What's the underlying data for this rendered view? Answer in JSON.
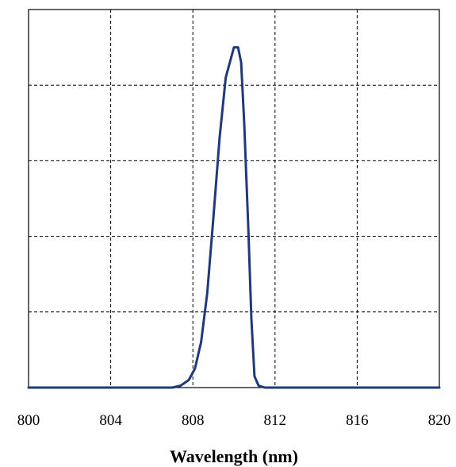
{
  "chart_data": {
    "type": "line",
    "title": "",
    "xlabel": "Wavelength (nm)",
    "ylabel": "",
    "xlim": [
      800,
      820
    ],
    "ylim": [
      0,
      1
    ],
    "x_ticks": [
      "800",
      "804",
      "808",
      "812",
      "816",
      "820"
    ],
    "x_tick_values": [
      800,
      804,
      808,
      812,
      816,
      820
    ],
    "y_grid_values": [
      0.2,
      0.4,
      0.6,
      0.8
    ],
    "grid": true,
    "grid_style": "dashed",
    "legend": "none",
    "series": [
      {
        "color": "#1f3a7a",
        "x": [
          800,
          807.0,
          807.4,
          807.8,
          808.1,
          808.4,
          808.7,
          809.0,
          809.3,
          809.6,
          809.8,
          810.0,
          810.2,
          810.35,
          810.5,
          810.7,
          810.85,
          811.0,
          811.2,
          811.5,
          812,
          820
        ],
        "y": [
          0,
          0.0,
          0.005,
          0.02,
          0.05,
          0.12,
          0.25,
          0.45,
          0.66,
          0.82,
          0.86,
          0.9,
          0.9,
          0.86,
          0.7,
          0.42,
          0.18,
          0.03,
          0.005,
          0.0,
          0.0,
          0.0
        ]
      }
    ]
  }
}
